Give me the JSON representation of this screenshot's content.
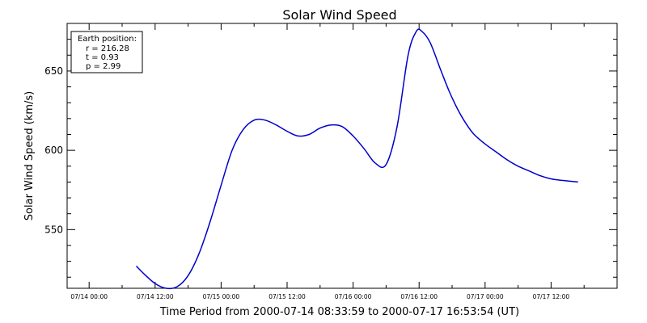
{
  "chart_data": {
    "type": "line",
    "title": "Solar Wind Speed",
    "xlabel": "Time Period from 2000-07-14 08:33:59 to 2000-07-17 16:53:54 (UT)",
    "ylabel": "Solar Wind Speed (km/s)",
    "x_tick_labels": [
      "07/14 00:00",
      "07/14 12:00",
      "07/15 00:00",
      "07/15 12:00",
      "07/16 00:00",
      "07/16 12:00",
      "07/17 00:00",
      "07/17 12:00"
    ],
    "x_tick_hours": [
      0,
      12,
      24,
      36,
      48,
      60,
      72,
      84
    ],
    "xlim_hours": [
      -4,
      96
    ],
    "y_tick_labels": [
      "550",
      "600",
      "650"
    ],
    "y_ticks": [
      550,
      600,
      650
    ],
    "ylim": [
      513,
      680
    ],
    "info_box": {
      "heading": "Earth position:",
      "r": "r = 216.28",
      "t": "t = 0.93",
      "p": "p = 2.99"
    },
    "series": [
      {
        "color": "#0000cc",
        "x_hours": [
          8.57,
          10,
          12,
          14,
          16,
          18,
          20,
          22,
          24,
          26,
          28,
          30,
          32,
          34,
          36,
          38,
          40,
          42,
          44,
          46,
          48,
          50,
          52,
          54,
          56,
          58,
          59.5,
          60.5,
          62,
          64,
          65.5,
          67,
          68.5,
          70,
          72,
          74,
          76,
          78,
          80,
          82,
          84,
          86,
          88.9
        ],
        "values": [
          527,
          522,
          516,
          513,
          514,
          521,
          535,
          555,
          578,
          600,
          613,
          619,
          619,
          616,
          612,
          609,
          610,
          614,
          616,
          615,
          609,
          601,
          592,
          591,
          615,
          660,
          675,
          675,
          668,
          650,
          637,
          626,
          617,
          610,
          604,
          599,
          594,
          590,
          587,
          584,
          582,
          581,
          580
        ]
      }
    ]
  }
}
